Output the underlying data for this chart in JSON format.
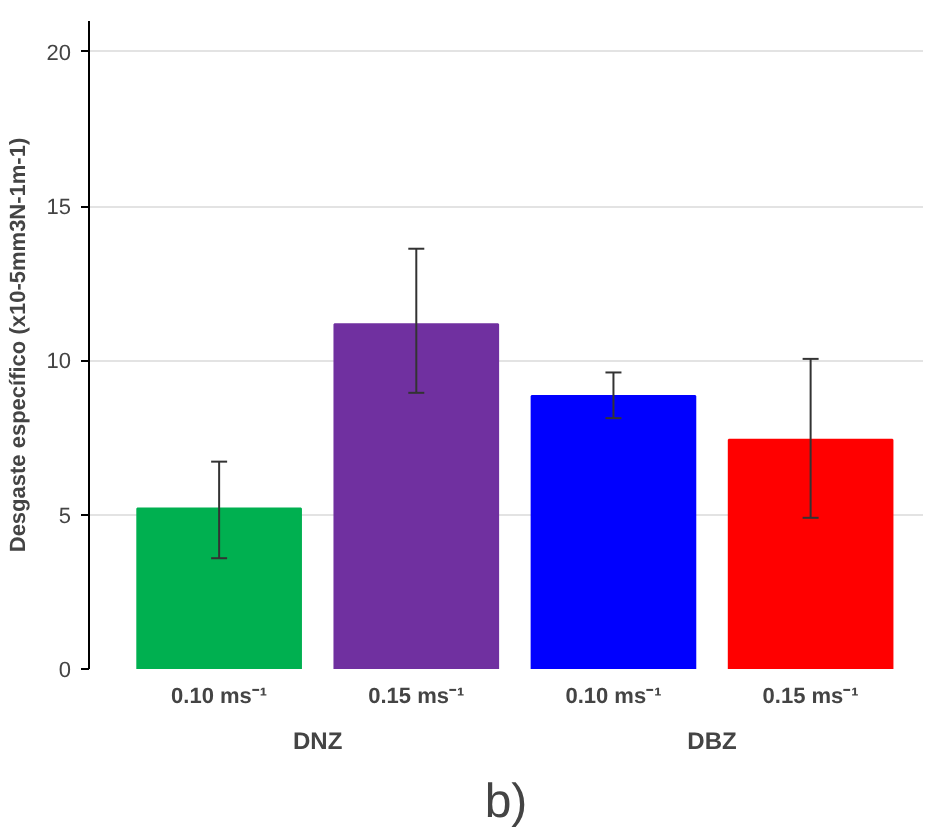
{
  "chart_data": {
    "type": "bar",
    "ylabel": "Desgaste específico (x10-5mm3N-1m-1)",
    "categories": [
      "0.10 ms⁻¹",
      "0.15 ms⁻¹",
      "0.10 ms⁻¹",
      "0.15 ms⁻¹"
    ],
    "values": [
      5.2,
      11.17,
      8.85,
      7.43
    ],
    "colors": [
      "#00b050",
      "#7030a0",
      "#0000ff",
      "#ff0000"
    ],
    "errors": [
      [
        3.59,
        6.72
      ],
      [
        8.95,
        13.62
      ],
      [
        8.13,
        9.61
      ],
      [
        4.9,
        10.05
      ]
    ],
    "ylim": [
      0,
      21
    ],
    "yticks": [
      0,
      5,
      10,
      15,
      20
    ],
    "grid": "y",
    "annotations": [
      "DNZ",
      "DBZ",
      "b)"
    ]
  }
}
